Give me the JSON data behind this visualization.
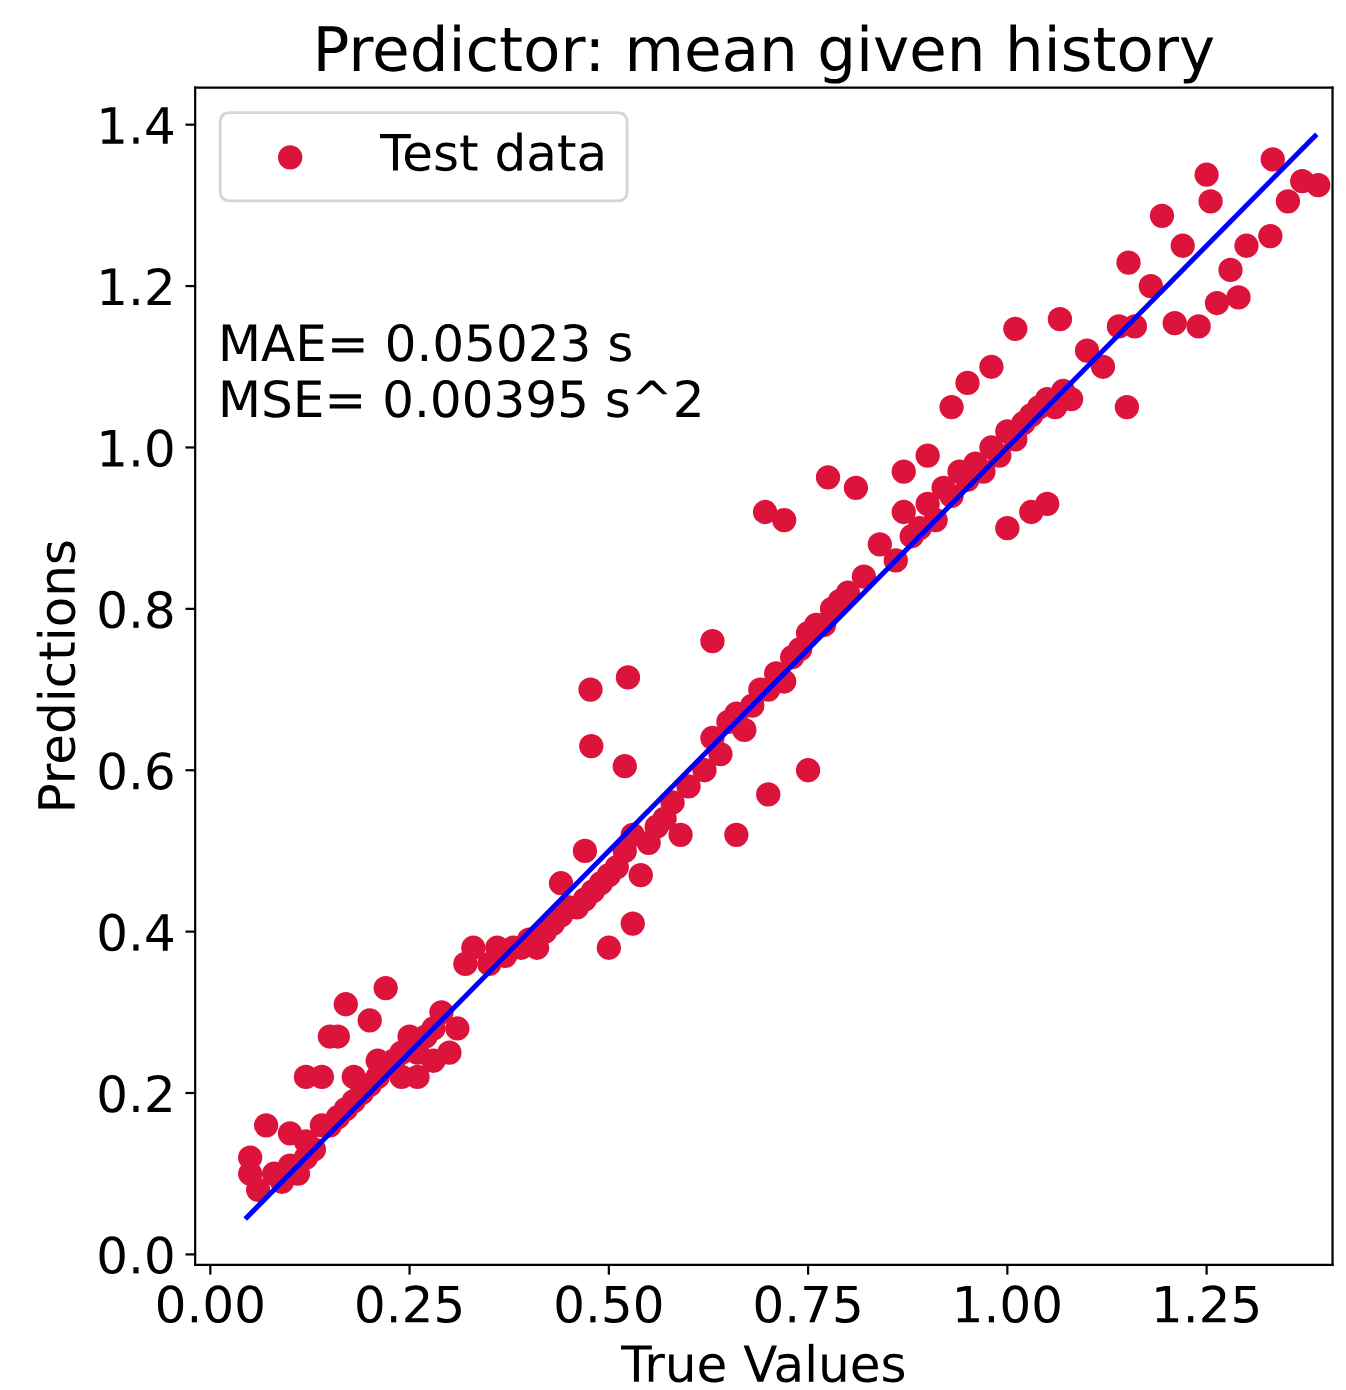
{
  "chart_data": {
    "type": "scatter",
    "title": "Predictor: mean given history",
    "xlabel": "True Values",
    "ylabel": "Predictions",
    "xlim": [
      -0.019,
      1.408
    ],
    "ylim": [
      -0.013,
      1.446
    ],
    "xticks": [
      {
        "value": 0,
        "label": "0.00"
      },
      {
        "value": 0.25,
        "label": "0.25"
      },
      {
        "value": 0.5,
        "label": "0.50"
      },
      {
        "value": 0.75,
        "label": "0.75"
      },
      {
        "value": 1.0,
        "label": "1.00"
      },
      {
        "value": 1.25,
        "label": "1.25"
      }
    ],
    "yticks": [
      {
        "value": 0,
        "label": "0.0"
      },
      {
        "value": 0.2,
        "label": "0.2"
      },
      {
        "value": 0.4,
        "label": "0.4"
      },
      {
        "value": 0.6,
        "label": "0.6"
      },
      {
        "value": 0.8,
        "label": "0.8"
      },
      {
        "value": 1.0,
        "label": "1.0"
      },
      {
        "value": 1.2,
        "label": "1.2"
      },
      {
        "value": 1.4,
        "label": "1.4"
      }
    ],
    "legend": "top left",
    "grid": false,
    "annotations": [
      "MAE= 0.05023 s\nMSE= 0.00395 s^2"
    ],
    "series": [
      {
        "name": "Test data",
        "marker": "circle",
        "color": "#dc143c",
        "x": [
          0.05,
          0.06,
          0.08,
          0.09,
          0.1,
          0.11,
          0.12,
          0.13,
          0.05,
          0.07,
          0.1,
          0.12,
          0.14,
          0.15,
          0.16,
          0.17,
          0.18,
          0.19,
          0.2,
          0.21,
          0.23,
          0.24,
          0.25,
          0.26,
          0.27,
          0.28,
          0.29,
          0.14,
          0.16,
          0.17,
          0.2,
          0.22,
          0.12,
          0.15,
          0.18,
          0.21,
          0.24,
          0.26,
          0.28,
          0.3,
          0.31,
          0.32,
          0.33,
          0.35,
          0.36,
          0.37,
          0.38,
          0.39,
          0.4,
          0.41,
          0.42,
          0.43,
          0.44,
          0.45,
          0.46,
          0.47,
          0.48,
          0.49,
          0.5,
          0.51,
          0.52,
          0.53,
          0.54,
          0.55,
          0.56,
          0.57,
          0.58,
          0.59,
          0.6,
          0.44,
          0.47,
          0.5,
          0.53,
          0.477,
          0.524,
          0.478,
          0.52,
          0.62,
          0.63,
          0.64,
          0.65,
          0.66,
          0.67,
          0.68,
          0.69,
          0.7,
          0.71,
          0.72,
          0.73,
          0.74,
          0.75,
          0.76,
          0.77,
          0.78,
          0.79,
          0.8,
          0.63,
          0.696,
          0.72,
          0.66,
          0.7,
          0.75,
          0.82,
          0.84,
          0.86,
          0.87,
          0.88,
          0.89,
          0.9,
          0.91,
          0.92,
          0.93,
          0.94,
          0.95,
          0.96,
          0.97,
          0.98,
          0.99,
          1.0,
          1.01,
          1.02,
          1.03,
          1.04,
          1.05,
          1.06,
          1.07,
          1.08,
          0.87,
          0.9,
          0.93,
          0.95,
          0.98,
          1.0,
          1.03,
          1.05,
          0.775,
          0.81,
          1.01,
          1.066,
          1.1,
          1.12,
          1.14,
          1.152,
          1.16,
          1.18,
          1.194,
          1.21,
          1.22,
          1.25,
          1.255,
          1.263,
          1.28,
          1.29,
          1.3,
          1.33,
          1.333,
          1.352,
          1.37,
          1.39,
          1.15,
          1.24
        ],
        "values": [
          0.1,
          0.08,
          0.1,
          0.09,
          0.11,
          0.1,
          0.12,
          0.13,
          0.12,
          0.16,
          0.15,
          0.14,
          0.16,
          0.16,
          0.17,
          0.18,
          0.19,
          0.2,
          0.21,
          0.22,
          0.24,
          0.25,
          0.27,
          0.25,
          0.27,
          0.28,
          0.3,
          0.22,
          0.27,
          0.31,
          0.29,
          0.33,
          0.22,
          0.27,
          0.22,
          0.24,
          0.22,
          0.22,
          0.24,
          0.25,
          0.28,
          0.36,
          0.38,
          0.36,
          0.38,
          0.37,
          0.38,
          0.38,
          0.39,
          0.38,
          0.4,
          0.41,
          0.42,
          0.43,
          0.43,
          0.44,
          0.45,
          0.46,
          0.47,
          0.48,
          0.5,
          0.52,
          0.47,
          0.51,
          0.53,
          0.54,
          0.56,
          0.52,
          0.58,
          0.46,
          0.5,
          0.38,
          0.41,
          0.7,
          0.715,
          0.63,
          0.605,
          0.6,
          0.64,
          0.62,
          0.66,
          0.67,
          0.65,
          0.68,
          0.7,
          0.7,
          0.72,
          0.71,
          0.74,
          0.75,
          0.77,
          0.78,
          0.78,
          0.8,
          0.81,
          0.82,
          0.76,
          0.92,
          0.91,
          0.52,
          0.57,
          0.6,
          0.84,
          0.88,
          0.86,
          0.92,
          0.89,
          0.9,
          0.93,
          0.91,
          0.95,
          0.94,
          0.97,
          0.96,
          0.98,
          0.97,
          1.0,
          0.99,
          1.02,
          1.01,
          1.03,
          1.04,
          1.05,
          1.06,
          1.05,
          1.07,
          1.06,
          0.97,
          0.99,
          1.05,
          1.08,
          1.1,
          0.9,
          0.92,
          0.93,
          0.963,
          0.95,
          1.147,
          1.159,
          1.12,
          1.1,
          1.15,
          1.229,
          1.15,
          1.2,
          1.287,
          1.154,
          1.25,
          1.338,
          1.305,
          1.179,
          1.22,
          1.186,
          1.25,
          1.262,
          1.357,
          1.305,
          1.33,
          1.325,
          1.05,
          1.15
        ]
      },
      {
        "type": "line",
        "marker": "none",
        "color": "#0000ff",
        "x": [
          0.046,
          1.386
        ],
        "values": [
          0.046,
          1.386
        ]
      }
    ]
  }
}
